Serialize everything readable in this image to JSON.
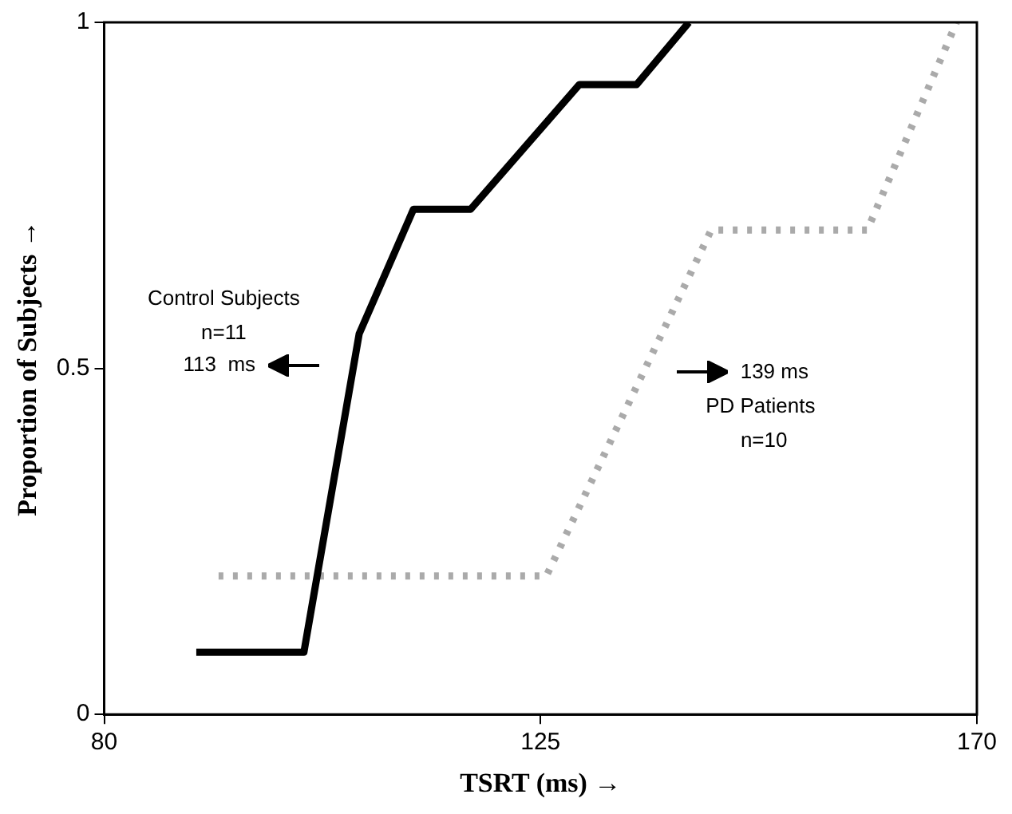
{
  "chart_data": {
    "type": "line",
    "xlabel": "TSRT (ms) →",
    "ylabel": "Proportion of Subjects →",
    "series": [
      {
        "color": "#000000",
        "line_style": "solid",
        "x": [
          89.5,
          100.6,
          106.3,
          111.9,
          117.8,
          129.0,
          134.9,
          140.3
        ],
        "values": [
          0.09,
          0.09,
          0.55,
          0.73,
          0.73,
          0.91,
          0.91,
          1.0
        ]
      },
      {
        "color": "#aaaaaa",
        "line_style": "dotted",
        "x": [
          91.8,
          125.6,
          142.6,
          158.7,
          167.9
        ],
        "values": [
          0.2,
          0.2,
          0.7,
          0.7,
          1.0
        ]
      }
    ],
    "xlim": [
      80,
      170
    ],
    "xticks": [
      80,
      125,
      170
    ],
    "ylim": [
      0,
      1
    ],
    "yticks": [
      0,
      {
        "value": 0.5,
        "label": "0.5"
      },
      1
    ],
    "grid": false,
    "legend": false,
    "marker": "none",
    "annotations": [
      "Control Subjects",
      "n=11",
      "113  ms",
      "139 ms",
      "PD Patients",
      "n=10"
    ]
  }
}
